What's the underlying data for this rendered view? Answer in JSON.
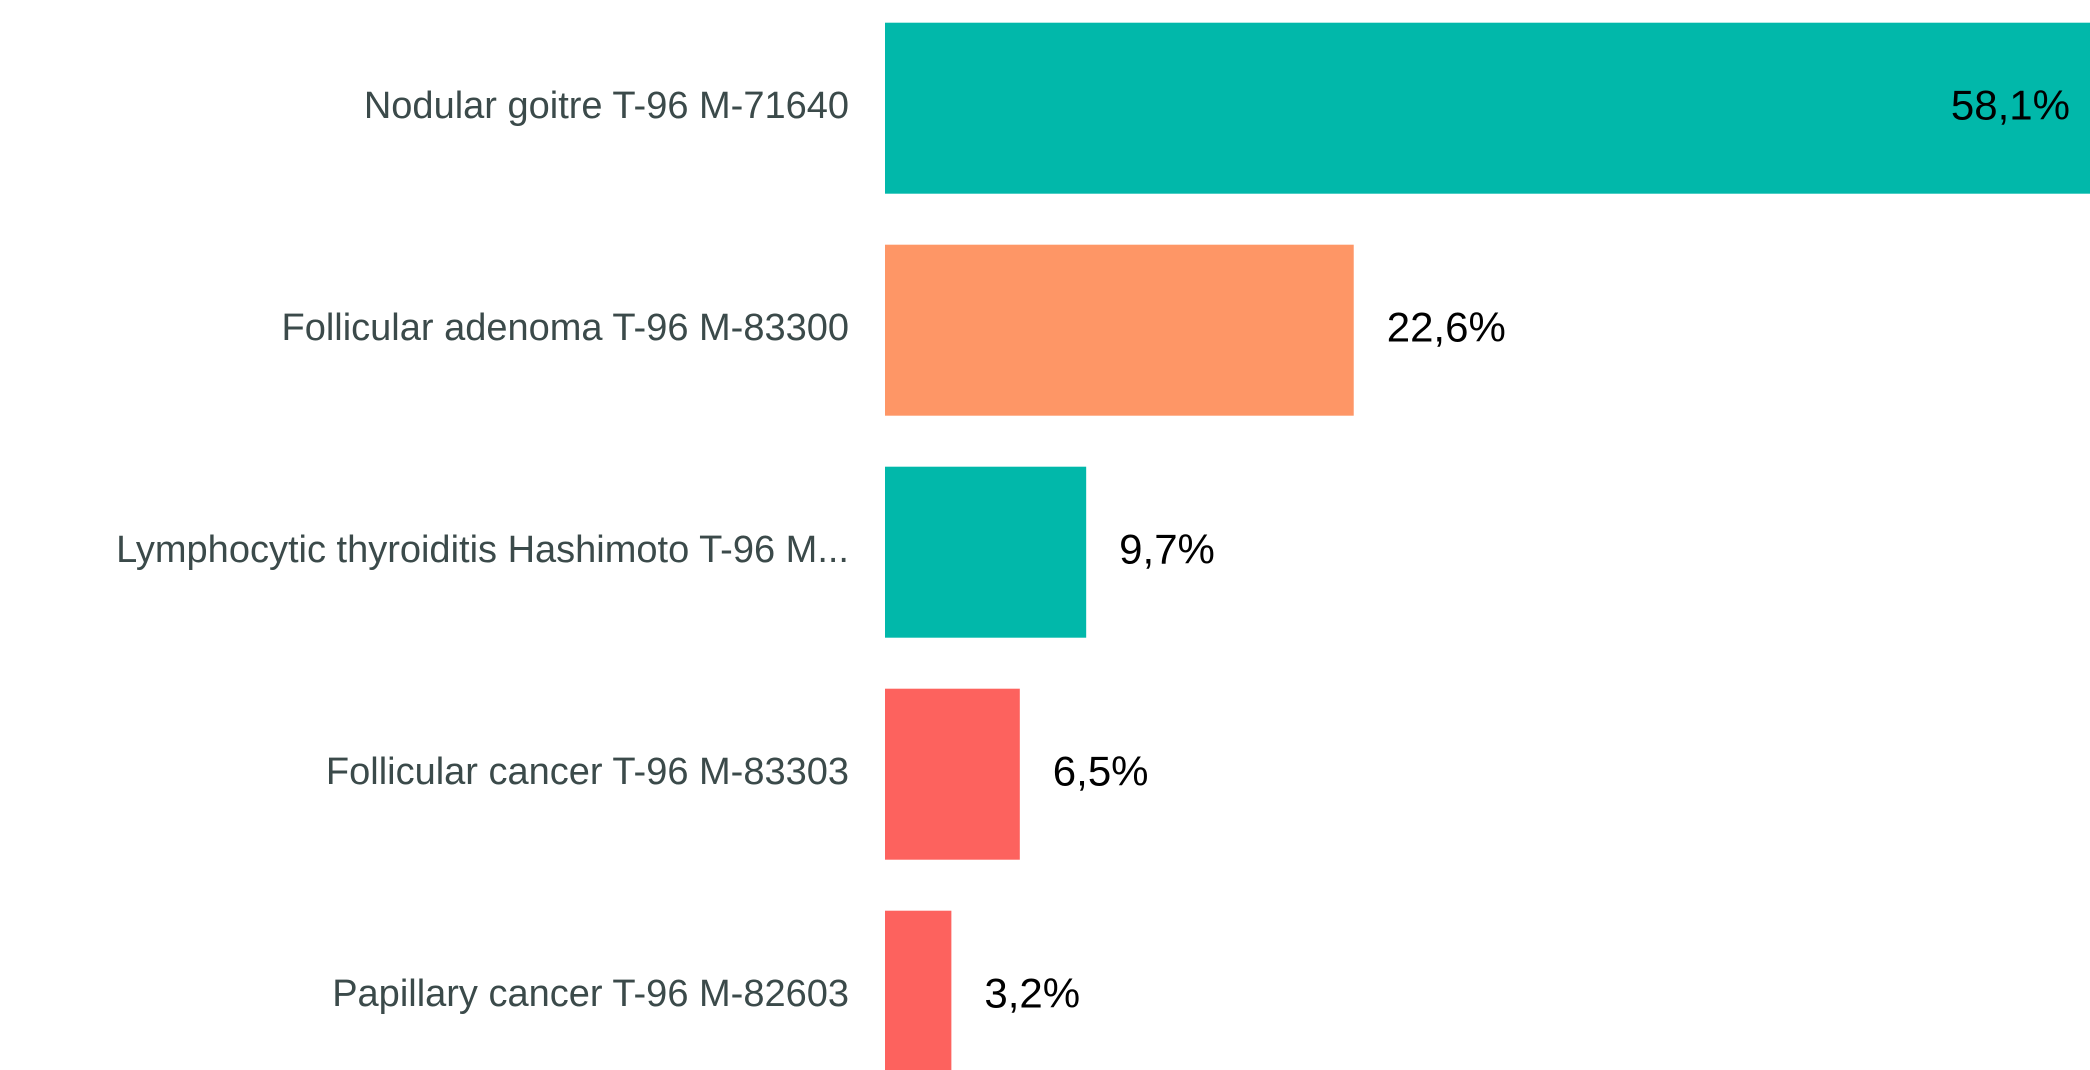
{
  "chart_data": {
    "type": "hbar",
    "categories": [
      "Nodular goitre T-96 M-71640",
      "Follicular adenoma T-96 M-83300",
      "Lymphocytic thyroiditis Hashimoto T-96 M...",
      "Follicular cancer T-96 M-83303",
      "Papillary cancer T-96 M-82603"
    ],
    "values": [
      58.1,
      22.6,
      9.7,
      6.5,
      3.2
    ],
    "value_labels": [
      "58,1%",
      "22,6%",
      "9,7%",
      "6,5%",
      "3,2%"
    ],
    "colors": [
      "#01b8aa",
      "#fe9666",
      "#01b8aa",
      "#fd625e",
      "#fd625e"
    ]
  }
}
